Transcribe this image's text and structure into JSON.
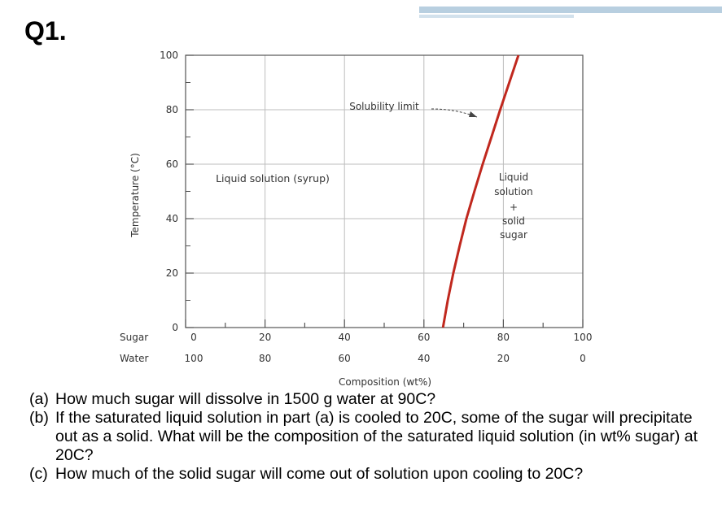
{
  "title": "Q1.",
  "colors": {
    "curve": "#c0281e",
    "grid": "#bdbdbd",
    "axis": "#555555",
    "text": "#333333"
  },
  "chart_data": {
    "type": "line",
    "xlabel": "Composition (wt%)",
    "ylabel": "Temperature (°C)",
    "xlim": [
      0,
      100
    ],
    "ylim": [
      0,
      100
    ],
    "y_ticks": [
      0,
      20,
      40,
      60,
      80,
      100
    ],
    "x_axis_rows": [
      {
        "label": "Sugar",
        "ticks": [
          "0",
          "20",
          "40",
          "60",
          "80",
          "100"
        ]
      },
      {
        "label": "Water",
        "ticks": [
          "100",
          "80",
          "60",
          "40",
          "20",
          "0"
        ]
      }
    ],
    "grid": true,
    "series": [
      {
        "name": "Solubility limit",
        "x": [
          64.8,
          66.0,
          67.4,
          69.0,
          70.7,
          72.7,
          74.8,
          77.0,
          79.2,
          81.5
        ],
        "y": [
          0,
          10,
          20,
          30,
          40,
          50,
          60,
          70,
          80,
          90
        ]
      }
    ],
    "annotations": [
      {
        "text": "Solubility limit",
        "at": {
          "x": 64,
          "y": 83
        }
      },
      {
        "text": "Liquid solution (syrup)",
        "at": {
          "x": 26,
          "y": 57
        }
      },
      {
        "lines": [
          "Liquid",
          "solution",
          "+",
          "solid",
          "sugar"
        ],
        "at": {
          "x": 83,
          "y": 57
        }
      }
    ]
  },
  "questions": [
    {
      "label": "(a)",
      "text": "How much sugar will dissolve in 1500 g water at 90C?"
    },
    {
      "label": "(b)",
      "text": "If the saturated liquid solution in part (a) is cooled to 20C, some of the sugar will precipitate out as a solid. What will be the composition of the saturated liquid solution (in wt% sugar) at 20C?"
    },
    {
      "label": "(c)",
      "text": "How much of the solid sugar will come out of solution upon cooling to 20C?"
    }
  ]
}
